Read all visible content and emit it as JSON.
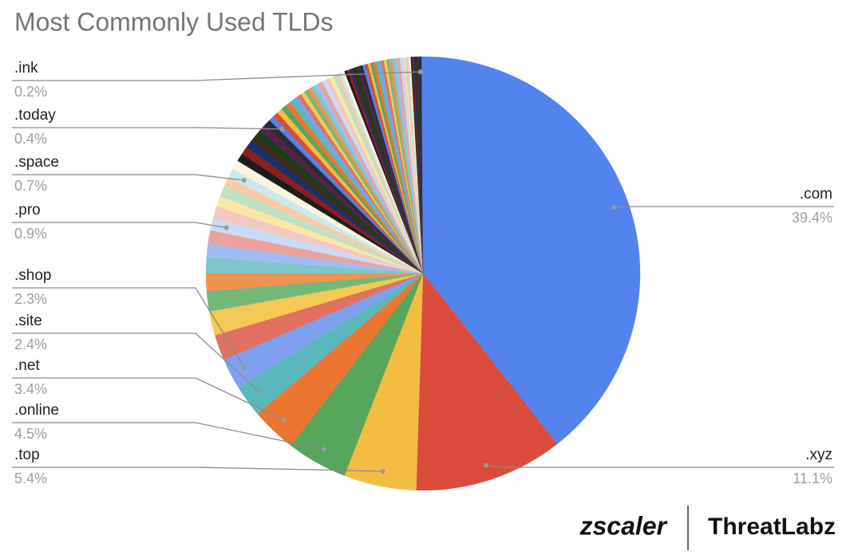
{
  "chart_data": {
    "type": "pie",
    "title": "Most Commonly Used TLDs",
    "categories": [
      ".com",
      ".xyz",
      ".top",
      ".online",
      ".net",
      ".site",
      ".shop",
      null,
      null,
      null,
      null,
      null,
      null,
      null,
      ".pro",
      null,
      null,
      null,
      null,
      ".space",
      null,
      null,
      null,
      null,
      null,
      null,
      null,
      null,
      ".today",
      null,
      null,
      null,
      null,
      null,
      null,
      null,
      null,
      null,
      null,
      null,
      null,
      null,
      null,
      null,
      null,
      null,
      null,
      null,
      null,
      null,
      null,
      null,
      null,
      null,
      null,
      null,
      null,
      null,
      null,
      null,
      null,
      null,
      null,
      null,
      null,
      null,
      null,
      null,
      null,
      null,
      null,
      null,
      null,
      null,
      null,
      null,
      null,
      null,
      null,
      null,
      null,
      null,
      null,
      ".ink",
      null
    ],
    "values": [
      39.4,
      11.1,
      5.4,
      4.5,
      3.4,
      2.4,
      2.3,
      1.9,
      1.8,
      1.5,
      1.3,
      1.2,
      1.0,
      1.0,
      0.9,
      0.9,
      0.8,
      0.8,
      0.7,
      0.7,
      0.7,
      0.6,
      0.6,
      0.6,
      0.5,
      0.5,
      0.5,
      0.5,
      0.4,
      0.4,
      0.4,
      0.4,
      0.4,
      0.4,
      0.3,
      0.3,
      0.3,
      0.3,
      0.3,
      0.3,
      0.3,
      0.3,
      0.3,
      0.3,
      0.3,
      0.3,
      0.2,
      0.2,
      0.2,
      0.2,
      0.2,
      0.2,
      0.2,
      0.2,
      0.2,
      0.2,
      0.2,
      0.2,
      0.2,
      0.2,
      0.2,
      0.2,
      0.2,
      0.2,
      0.2,
      0.2,
      0.2,
      0.2,
      0.2,
      0.2,
      0.2,
      0.1,
      0.1,
      0.1,
      0.1,
      0.1,
      0.1,
      0.1,
      0.1,
      0.1,
      0.1,
      0.1,
      0.1,
      0.2,
      0.1
    ],
    "value_labels": [
      "39.4%",
      "11.1%",
      "5.4%",
      "4.5%",
      "3.4%",
      "2.4%",
      "2.3%",
      null,
      null,
      null,
      null,
      null,
      null,
      null,
      "0.9%",
      null,
      null,
      null,
      null,
      "0.7%",
      null,
      null,
      null,
      null,
      null,
      null,
      null,
      null,
      "0.4%",
      null,
      null,
      null,
      null,
      null,
      null,
      null,
      null,
      null,
      null,
      null,
      null,
      null,
      null,
      null,
      null,
      null,
      null,
      null,
      null,
      null,
      null,
      null,
      null,
      null,
      null,
      null,
      null,
      null,
      null,
      null,
      null,
      null,
      null,
      null,
      null,
      null,
      null,
      null,
      null,
      null,
      null,
      null,
      null,
      null,
      null,
      null,
      null,
      null,
      null,
      null,
      null,
      null,
      null,
      "0.2%",
      null
    ],
    "palette": [
      "#5383ec",
      "#db4b3c",
      "#f2bd42",
      "#58a55c",
      "#eb7531",
      "#5ab8bd",
      "#7ea0ee",
      "#e0705f",
      "#f4c955",
      "#74b878",
      "#ef9350",
      "#7dc7cb",
      "#a3bbf3",
      "#eaa39a",
      "#c9dcf7",
      "#f3c8c0",
      "#fbe7a6",
      "#bfe0c2",
      "#f7cba6",
      "#cbe8ea",
      "#fdf3e1",
      "#1c1c1c",
      "#8b1e1e",
      "#1b2f6b",
      "#3d2b16",
      "#173d1d",
      "#5a1f4a",
      "#2a2a3a"
    ],
    "branding": {
      "logo": "zscaler",
      "lab": "ThreatLabz"
    }
  }
}
